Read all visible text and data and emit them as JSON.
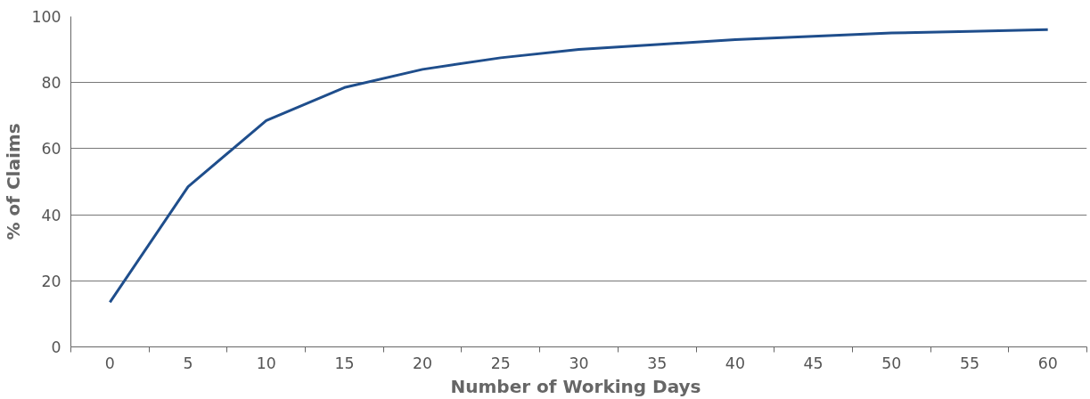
{
  "chart_data": {
    "type": "line",
    "xlabel": "Number of  Working Days",
    "ylabel": "% of Claims",
    "x": [
      0,
      5,
      10,
      15,
      20,
      25,
      30,
      35,
      40,
      45,
      50,
      55,
      60
    ],
    "series": [
      {
        "color": "#1f4e8c",
        "values": [
          13.5,
          48.5,
          68.5,
          78.5,
          84,
          87.5,
          90,
          91.5,
          93,
          94,
          95,
          95.5,
          96
        ]
      }
    ],
    "xlim": [
      -2.5,
      62.5
    ],
    "xticks": [
      0,
      5,
      10,
      15,
      20,
      25,
      30,
      35,
      40,
      45,
      50,
      55,
      60
    ],
    "ylim": [
      0,
      100
    ],
    "yticks": [
      0,
      20,
      40,
      60,
      80,
      100
    ],
    "grid": "y",
    "marker": "none",
    "line_style": "solid"
  }
}
